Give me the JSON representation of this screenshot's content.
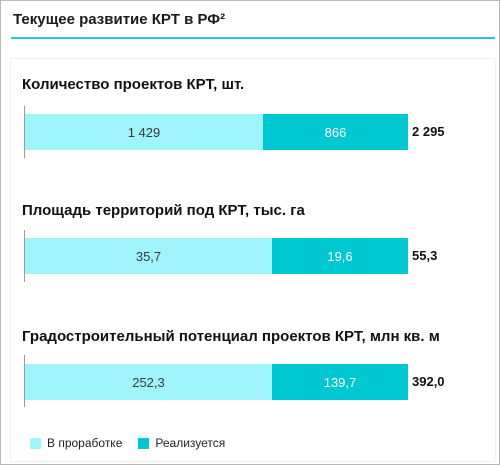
{
  "header": {
    "title": "Текущее развитие КРТ в РФ²"
  },
  "legend": [
    {
      "label": "В проработке",
      "color": "#9ff3fb"
    },
    {
      "label": "Реализуется",
      "color": "#00c8d2"
    }
  ],
  "chart_data": [
    {
      "type": "bar",
      "stacked": true,
      "orientation": "horizontal",
      "title": "Количество проектов КРТ, шт.",
      "series": [
        {
          "name": "В проработке",
          "values": [
            1429
          ],
          "label": "1 429"
        },
        {
          "name": "Реализуется",
          "values": [
            866
          ],
          "label": "866"
        }
      ],
      "total": 2295,
      "total_label": "2 295"
    },
    {
      "type": "bar",
      "stacked": true,
      "orientation": "horizontal",
      "title": "Площадь территорий под КРТ, тыс. га",
      "series": [
        {
          "name": "В проработке",
          "values": [
            35.7
          ],
          "label": "35,7"
        },
        {
          "name": "Реализуется",
          "values": [
            19.6
          ],
          "label": "19,6"
        }
      ],
      "total": 55.3,
      "total_label": "55,3"
    },
    {
      "type": "bar",
      "stacked": true,
      "orientation": "horizontal",
      "title": "Градостроительный потенциал проектов КРТ, млн кв. м",
      "series": [
        {
          "name": "В проработке",
          "values": [
            252.3
          ],
          "label": "252,3"
        },
        {
          "name": "Реализуется",
          "values": [
            139.7
          ],
          "label": "139,7"
        }
      ],
      "total": 392.0,
      "total_label": "392,0"
    }
  ]
}
